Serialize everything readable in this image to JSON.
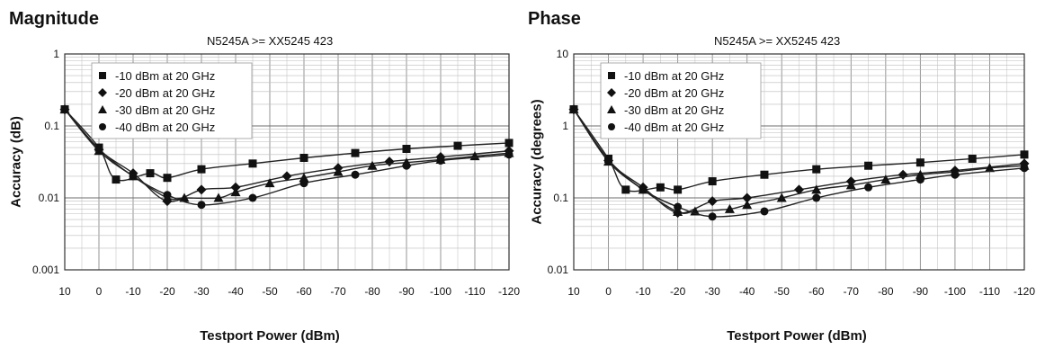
{
  "chart_data": [
    {
      "panel_title": "Magnitude",
      "type": "line",
      "title": "N5245A >= XX5245 423",
      "xlabel": "Testport Power (dBm)",
      "ylabel": "Accuracy (dB)",
      "yscale": "log",
      "ylim": [
        0.001,
        1
      ],
      "yticks": [
        "1",
        "0.1",
        "0.01",
        "0.001"
      ],
      "xlim": [
        10,
        -120
      ],
      "xticks": [
        "10",
        "0",
        "-10",
        "-20",
        "-30",
        "-40",
        "-50",
        "-60",
        "-70",
        "-80",
        "-90",
        "-100",
        "-110",
        "-120"
      ],
      "grid": true,
      "legend_position": "top-left",
      "series": [
        {
          "name": "-10 dBm at 20 GHz",
          "marker": "square",
          "x": [
            10,
            0,
            -5,
            -15,
            -20,
            -30,
            -45,
            -60,
            -75,
            -90,
            -105,
            -120
          ],
          "y": [
            0.17,
            0.05,
            0.018,
            0.022,
            0.019,
            0.025,
            0.03,
            0.036,
            0.042,
            0.048,
            0.053,
            0.058
          ]
        },
        {
          "name": "-20 dBm at 20 GHz",
          "marker": "diamond",
          "x": [
            10,
            0,
            -10,
            -20,
            -30,
            -40,
            -55,
            -70,
            -85,
            -100,
            -120
          ],
          "y": [
            0.17,
            0.047,
            0.022,
            0.009,
            0.013,
            0.014,
            0.02,
            0.026,
            0.032,
            0.037,
            0.045
          ]
        },
        {
          "name": "-30 dBm at 20 GHz",
          "marker": "triangle",
          "x": [
            10,
            0,
            -10,
            -20,
            -25,
            -35,
            -40,
            -50,
            -60,
            -70,
            -80,
            -90,
            -100,
            -110,
            -120
          ],
          "y": [
            0.17,
            0.045,
            0.02,
            0.01,
            0.01,
            0.01,
            0.012,
            0.016,
            0.019,
            0.023,
            0.028,
            0.031,
            0.034,
            0.038,
            0.042
          ]
        },
        {
          "name": "-40 dBm at 20 GHz",
          "marker": "circle",
          "x": [
            10,
            0,
            -10,
            -20,
            -30,
            -45,
            -60,
            -75,
            -90,
            -100,
            -120
          ],
          "y": [
            0.17,
            0.048,
            0.02,
            0.011,
            0.008,
            0.01,
            0.016,
            0.021,
            0.028,
            0.033,
            0.04
          ]
        }
      ]
    },
    {
      "panel_title": "Phase",
      "type": "line",
      "title": "N5245A >= XX5245 423",
      "xlabel": "Testport Power (dBm)",
      "ylabel": "Accuracy (degrees)",
      "yscale": "log",
      "ylim": [
        0.01,
        10
      ],
      "yticks": [
        "10",
        "1",
        "0.1",
        "0.01"
      ],
      "xlim": [
        10,
        -120
      ],
      "xticks": [
        "10",
        "0",
        "-10",
        "-20",
        "-30",
        "-40",
        "-50",
        "-60",
        "-70",
        "-80",
        "-90",
        "-100",
        "-110",
        "-120"
      ],
      "grid": true,
      "legend_position": "top-left",
      "series": [
        {
          "name": "-10 dBm at 20 GHz",
          "marker": "square",
          "x": [
            10,
            0,
            -5,
            -15,
            -20,
            -30,
            -45,
            -60,
            -75,
            -90,
            -105,
            -120
          ],
          "y": [
            1.7,
            0.35,
            0.13,
            0.14,
            0.13,
            0.17,
            0.21,
            0.25,
            0.28,
            0.31,
            0.35,
            0.4
          ]
        },
        {
          "name": "-20 dBm at 20 GHz",
          "marker": "diamond",
          "x": [
            10,
            0,
            -10,
            -20,
            -30,
            -40,
            -55,
            -70,
            -85,
            -100,
            -120
          ],
          "y": [
            1.7,
            0.33,
            0.14,
            0.062,
            0.09,
            0.1,
            0.13,
            0.17,
            0.21,
            0.24,
            0.3
          ]
        },
        {
          "name": "-30 dBm at 20 GHz",
          "marker": "triangle",
          "x": [
            10,
            0,
            -10,
            -20,
            -25,
            -35,
            -40,
            -50,
            -60,
            -70,
            -80,
            -90,
            -100,
            -110,
            -120
          ],
          "y": [
            1.7,
            0.32,
            0.13,
            0.064,
            0.065,
            0.07,
            0.08,
            0.1,
            0.13,
            0.15,
            0.18,
            0.21,
            0.23,
            0.26,
            0.28
          ]
        },
        {
          "name": "-40 dBm at 20 GHz",
          "marker": "circle",
          "x": [
            10,
            0,
            -10,
            -20,
            -30,
            -45,
            -60,
            -75,
            -90,
            -100,
            -120
          ],
          "y": [
            1.7,
            0.34,
            0.13,
            0.075,
            0.055,
            0.065,
            0.1,
            0.14,
            0.18,
            0.21,
            0.26
          ]
        }
      ]
    }
  ]
}
